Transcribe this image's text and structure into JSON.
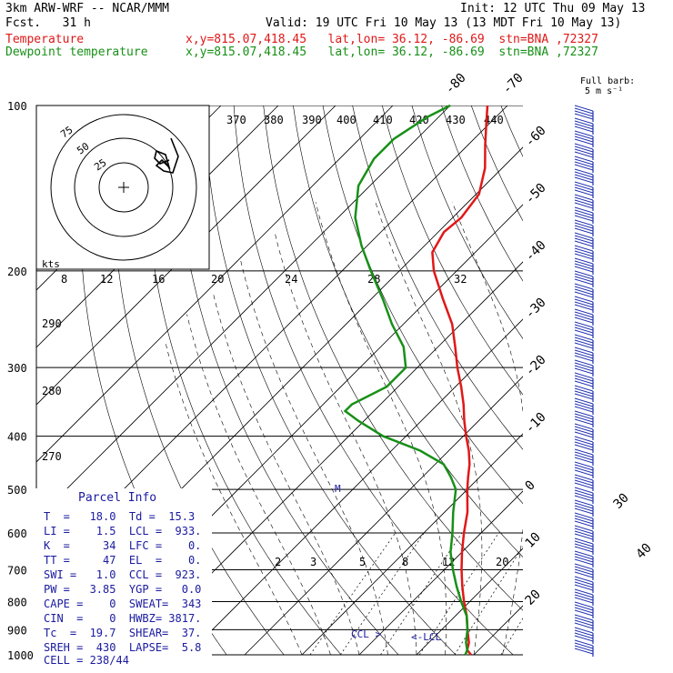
{
  "header": {
    "model": "3km ARW-WRF -- NCAR/MMM",
    "init": "Init: 12 UTC Thu 09 May 13",
    "fcst": "Fcst.   31 h",
    "valid": "Valid: 19 UTC Fri 10 May 13 (13 MDT Fri 10 May 13)",
    "temp_label": "Temperature",
    "temp_loc": "x,y=815.07,418.45   lat,lon= 36.12, -86.69  stn=BNA ,72327",
    "dew_label": "Dewpoint temperature",
    "dew_loc": "x,y=815.07,418.45   lat,lon= 36.12, -86.69  stn=BNA ,72327"
  },
  "colors": {
    "temperature": "#e01818",
    "dewpoint": "#189018",
    "text": "#1a1aa0",
    "grid": "#000000"
  },
  "chart_data": {
    "type": "line",
    "pressure_levels": [
      "100",
      "200",
      "300",
      "400",
      "500",
      "600",
      "700",
      "800",
      "900",
      "1000"
    ],
    "isotherm_labels": [
      "-80",
      "-70",
      "-60",
      "-50",
      "-40",
      "-30",
      "-20",
      "-10",
      "0",
      "10",
      "20",
      "30",
      "40"
    ],
    "theta_labels": [
      "370",
      "380",
      "390",
      "400",
      "410",
      "420",
      "430",
      "440"
    ],
    "theta_left_labels": [
      "290",
      "280",
      "270"
    ],
    "mixing_labels": [
      "2",
      "3",
      "5",
      "8",
      "12",
      "20"
    ],
    "wind_speed_scale": [
      "8",
      "12",
      "16",
      "20",
      "24",
      "28",
      "32"
    ],
    "wind_speed_unit": "kts",
    "hodograph_rings": [
      "75",
      "50",
      "25"
    ],
    "barb_legend": [
      "Full barb:",
      "5 m s⁻¹"
    ],
    "markers": [
      "M",
      "CCL",
      "LCL"
    ],
    "series": [
      {
        "name": "Temperature",
        "points": [
          [
            1000,
            19.5
          ],
          [
            980,
            18.0
          ],
          [
            950,
            17.0
          ],
          [
            900,
            14.5
          ],
          [
            850,
            12.0
          ],
          [
            800,
            9.0
          ],
          [
            750,
            6.0
          ],
          [
            700,
            3.0
          ],
          [
            650,
            0.0
          ],
          [
            600,
            -3.0
          ],
          [
            550,
            -6.0
          ],
          [
            500,
            -10.0
          ],
          [
            475,
            -12.0
          ],
          [
            450,
            -14.0
          ],
          [
            425,
            -16.5
          ],
          [
            400,
            -19.5
          ],
          [
            375,
            -22.5
          ],
          [
            350,
            -25.5
          ],
          [
            325,
            -29.0
          ],
          [
            300,
            -33.0
          ],
          [
            275,
            -37.0
          ],
          [
            250,
            -41.5
          ],
          [
            225,
            -47.5
          ],
          [
            200,
            -54.0
          ],
          [
            185,
            -57.5
          ],
          [
            170,
            -59.0
          ],
          [
            160,
            -58.5
          ],
          [
            145,
            -59.5
          ],
          [
            130,
            -63.0
          ],
          [
            118,
            -67.0
          ],
          [
            108,
            -70.5
          ],
          [
            100,
            -73.5
          ]
        ]
      },
      {
        "name": "Dewpoint temperature",
        "points": [
          [
            1000,
            18.5
          ],
          [
            980,
            18.0
          ],
          [
            950,
            16.5
          ],
          [
            900,
            14.5
          ],
          [
            850,
            12.0
          ],
          [
            800,
            8.5
          ],
          [
            750,
            5.0
          ],
          [
            700,
            1.5
          ],
          [
            650,
            -2.0
          ],
          [
            600,
            -5.0
          ],
          [
            550,
            -8.5
          ],
          [
            500,
            -12.0
          ],
          [
            475,
            -15.0
          ],
          [
            450,
            -18.5
          ],
          [
            425,
            -25.0
          ],
          [
            400,
            -34.0
          ],
          [
            375,
            -41.0
          ],
          [
            360,
            -45.0
          ],
          [
            350,
            -45.0
          ],
          [
            325,
            -42.0
          ],
          [
            300,
            -42.0
          ],
          [
            275,
            -46.0
          ],
          [
            250,
            -52.0
          ],
          [
            225,
            -58.0
          ],
          [
            200,
            -65.0
          ],
          [
            180,
            -71.0
          ],
          [
            160,
            -77.0
          ],
          [
            140,
            -82.0
          ],
          [
            125,
            -84.0
          ],
          [
            115,
            -84.0
          ],
          [
            105,
            -82.0
          ],
          [
            100,
            -80.0
          ]
        ]
      }
    ]
  },
  "parcel": {
    "title": "Parcel Info",
    "rows": [
      "T  =   18.0  Td =  15.3",
      "LI =    1.5  LCL =  933.",
      "K  =     34  LFC =    0.",
      "TT =     47  EL  =    0.",
      "SWI =   1.0  CCL =  923.",
      "PW =   3.85  YGP =   0.0",
      "CAPE =    0  SWEAT=  343",
      "CIN  =    0  HWBZ= 3817.",
      "Tc  =  19.7  SHEAR=  37.",
      "SREH =  430  LAPSE=  5.8",
      "CELL = 238/44"
    ]
  }
}
